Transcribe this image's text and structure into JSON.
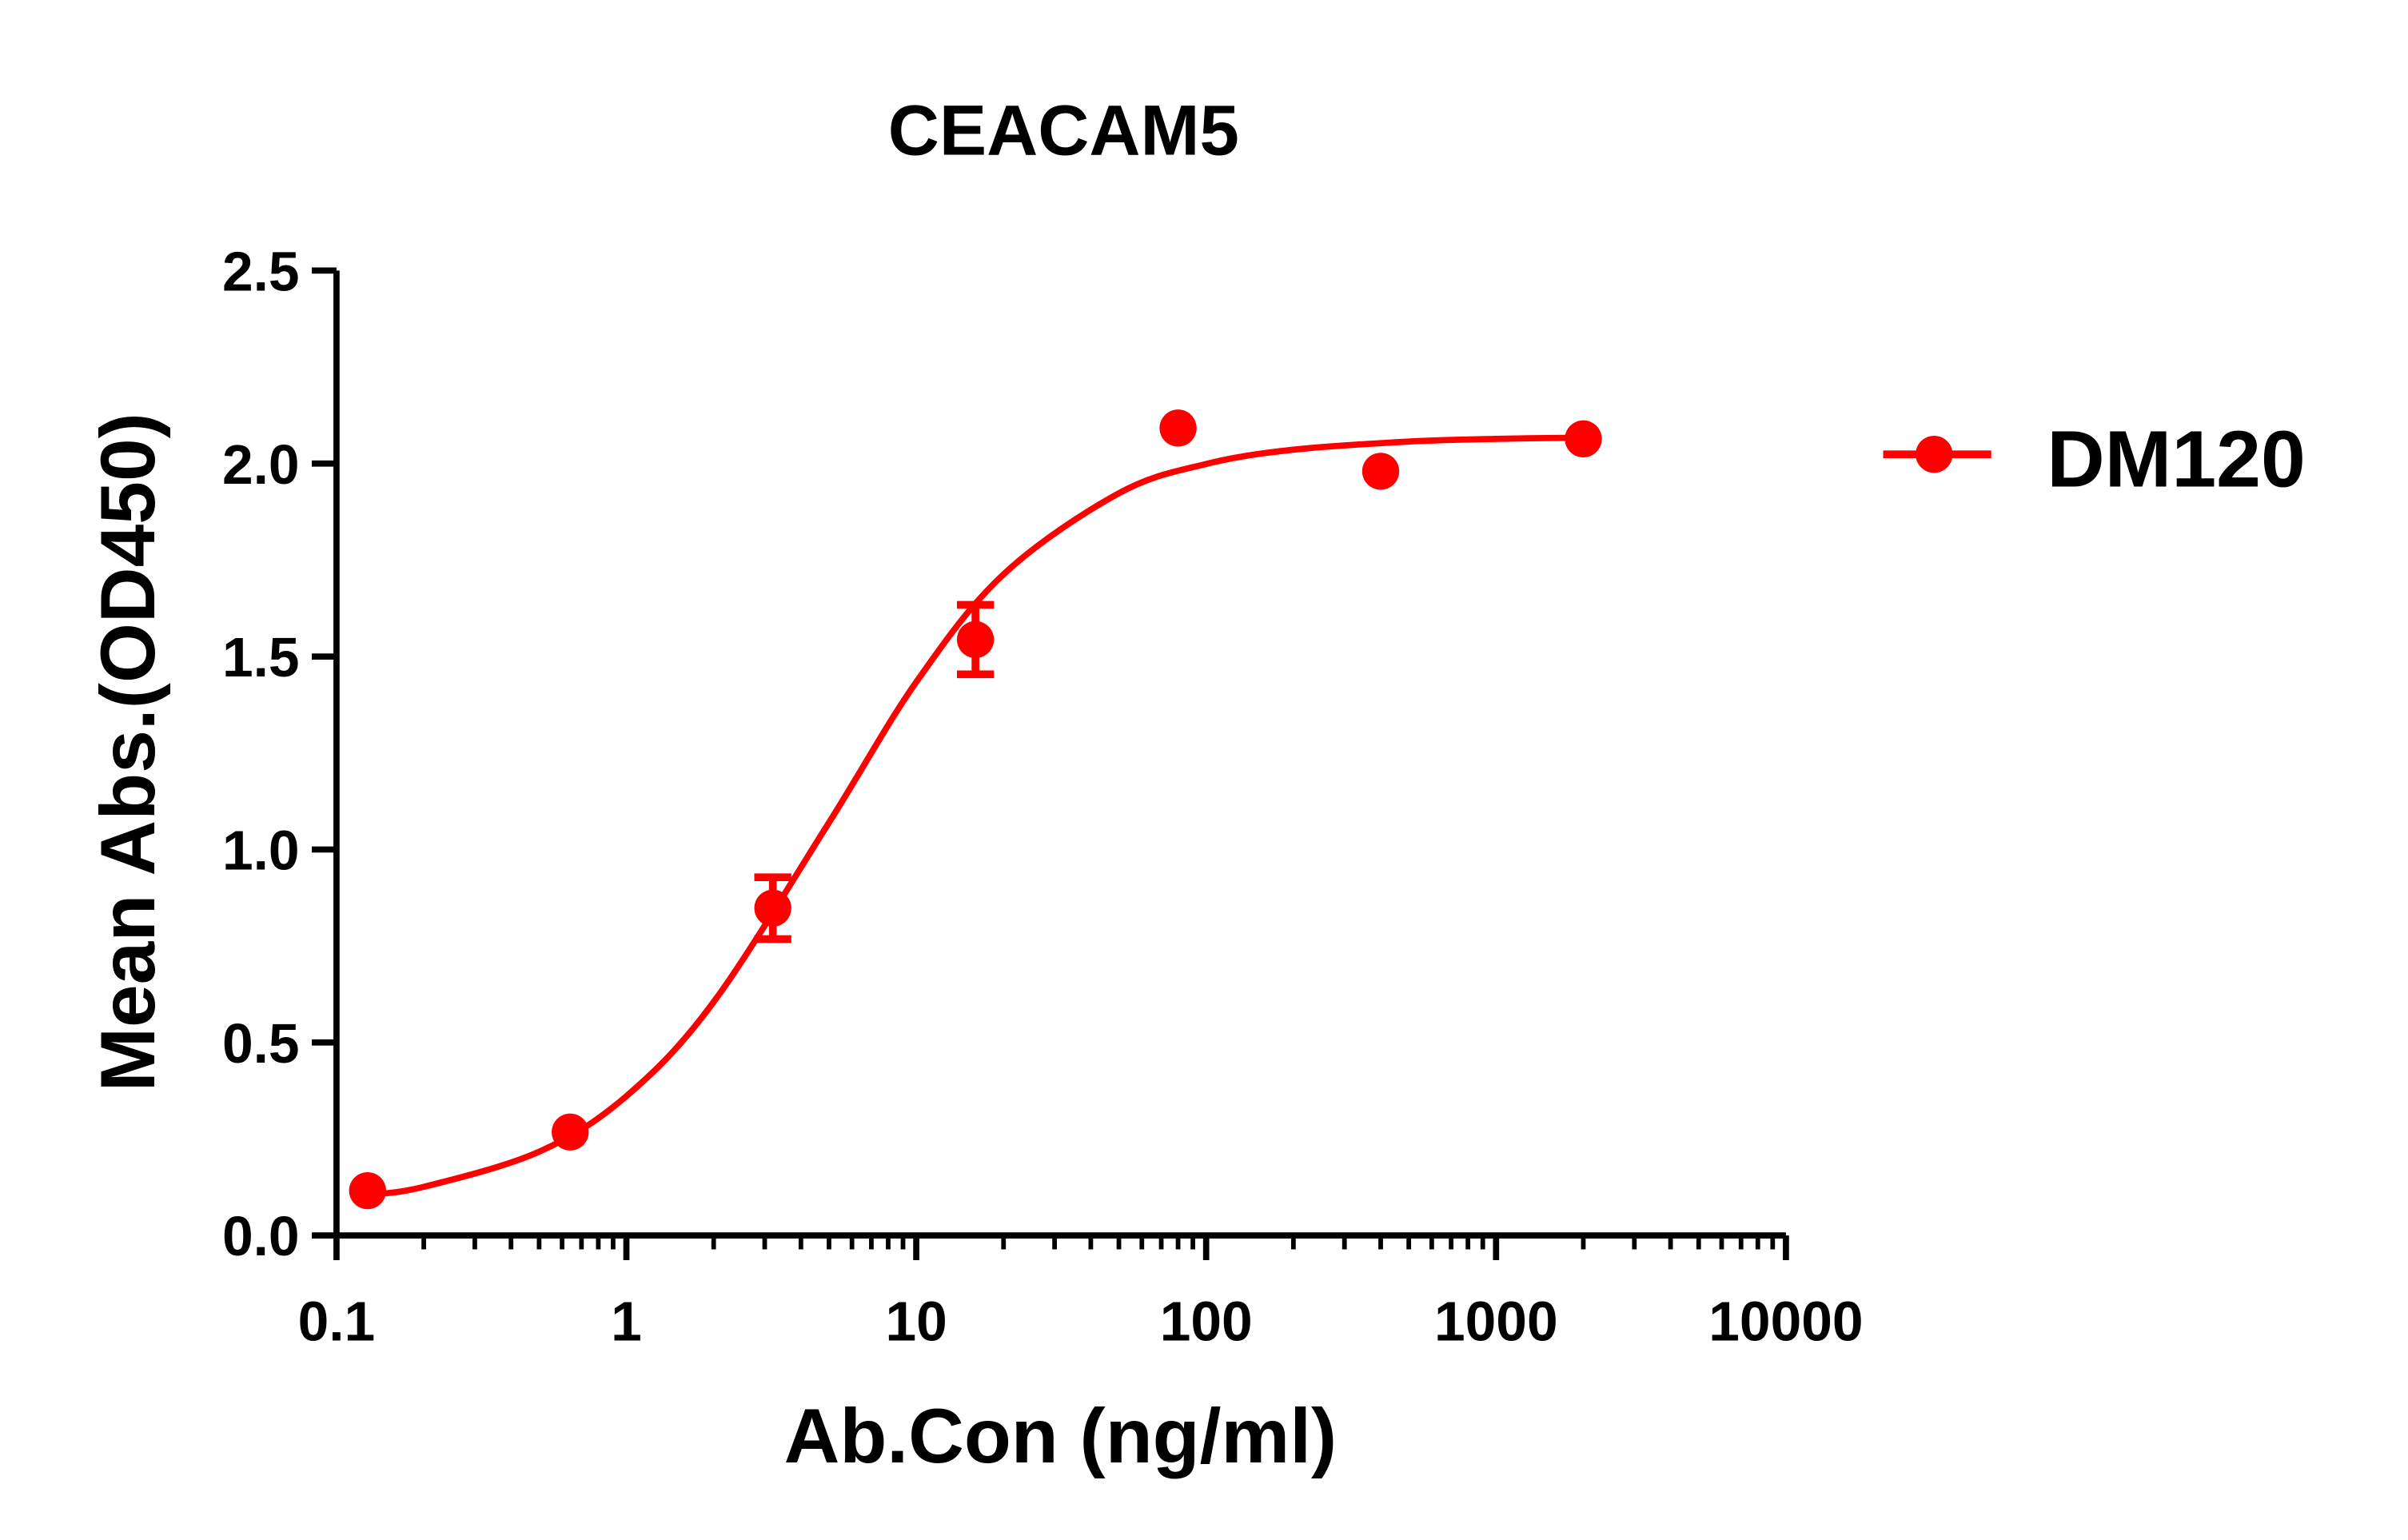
{
  "chart_data": {
    "type": "scatter",
    "title": "CEACAM5",
    "xlabel": "Ab.Con (ng/ml)",
    "ylabel": "Mean Abs.(OD450)",
    "xscale": "log",
    "xlim": [
      0.1,
      10000
    ],
    "ylim": [
      0,
      2.5
    ],
    "xticks": [
      0.1,
      1,
      10,
      100,
      1000,
      10000
    ],
    "xtick_labels": [
      "0.1",
      "1",
      "10",
      "100",
      "1000",
      "10000"
    ],
    "yticks": [
      0,
      0.5,
      1.0,
      1.5,
      2.0,
      2.5
    ],
    "ytick_labels": [
      "0.0",
      "0.5",
      "1.0",
      "1.5",
      "2.0",
      "2.5"
    ],
    "grid": false,
    "legend_position": "right",
    "colors": {
      "series": "#ff0000",
      "axis": "#000000"
    },
    "series": [
      {
        "name": "DM120",
        "x": [
          0.128,
          0.64,
          3.2,
          16,
          80,
          400,
          2000
        ],
        "y": [
          0.116,
          0.268,
          0.848,
          1.544,
          2.092,
          1.98,
          2.064
        ],
        "yerr": [
          0,
          0,
          0.08,
          0.09,
          0,
          0,
          0
        ],
        "fit_curve": {
          "x": [
            0.128,
            0.2,
            0.5,
            1,
            2,
            5,
            10,
            20,
            50,
            100,
            200,
            500,
            1000,
            2000
          ],
          "y": [
            0.105,
            0.126,
            0.217,
            0.361,
            0.605,
            1.07,
            1.434,
            1.713,
            1.923,
            1.999,
            2.036,
            2.057,
            2.064,
            2.067
          ]
        }
      }
    ]
  }
}
